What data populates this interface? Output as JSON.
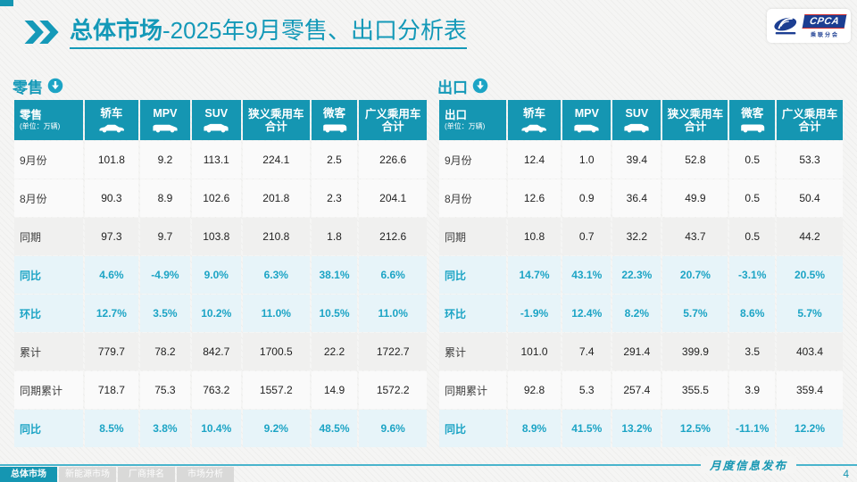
{
  "page": {
    "title_bold": "总体市场",
    "title_rest": "-2025年9月零售、出口分析表",
    "footer_note": "月度信息发布",
    "page_number": "4"
  },
  "logo": {
    "cpca": "CPCA",
    "subtext": "乘联分会"
  },
  "colors": {
    "accent": "#1596B2",
    "percent_text": "#1CA4C5",
    "percent_row_bg": "#E7F4F9"
  },
  "tabs": [
    {
      "label": "总体市场",
      "active": true
    },
    {
      "label": "新能源市场",
      "active": false
    },
    {
      "label": "厂商排名",
      "active": false
    },
    {
      "label": "市场分析",
      "active": false
    }
  ],
  "columns": [
    {
      "label": "轿车",
      "icon": "sedan-icon"
    },
    {
      "label": "MPV",
      "icon": "mpv-icon"
    },
    {
      "label": "SUV",
      "icon": "suv-icon"
    },
    {
      "label": "狭义乘用车合计",
      "icon": null
    },
    {
      "label": "微客",
      "icon": "microvan-icon"
    },
    {
      "label": "广义乘用车合计",
      "icon": null
    }
  ],
  "tables": [
    {
      "name": "零售",
      "unit": "(单位：万辆)",
      "section_icon": "circle-down-arrow-icon",
      "rows": [
        {
          "label": "9月份",
          "kind": "value",
          "values": [
            "101.8",
            "9.2",
            "113.1",
            "224.1",
            "2.5",
            "226.6"
          ]
        },
        {
          "label": "8月份",
          "kind": "value",
          "values": [
            "90.3",
            "8.9",
            "102.6",
            "201.8",
            "2.3",
            "204.1"
          ]
        },
        {
          "label": "同期",
          "kind": "value",
          "values": [
            "97.3",
            "9.7",
            "103.8",
            "210.8",
            "1.8",
            "212.6"
          ]
        },
        {
          "label": "同比",
          "kind": "percent",
          "values": [
            "4.6%",
            "-4.9%",
            "9.0%",
            "6.3%",
            "38.1%",
            "6.6%"
          ]
        },
        {
          "label": "环比",
          "kind": "percent",
          "values": [
            "12.7%",
            "3.5%",
            "10.2%",
            "11.0%",
            "10.5%",
            "11.0%"
          ]
        },
        {
          "label": "累计",
          "kind": "value",
          "values": [
            "779.7",
            "78.2",
            "842.7",
            "1700.5",
            "22.2",
            "1722.7"
          ]
        },
        {
          "label": "同期累计",
          "kind": "value",
          "values": [
            "718.7",
            "75.3",
            "763.2",
            "1557.2",
            "14.9",
            "1572.2"
          ]
        },
        {
          "label": "同比",
          "kind": "percent",
          "values": [
            "8.5%",
            "3.8%",
            "10.4%",
            "9.2%",
            "48.5%",
            "9.6%"
          ]
        }
      ]
    },
    {
      "name": "出口",
      "unit": "(单位：万辆)",
      "section_icon": "circle-down-arrow-icon",
      "rows": [
        {
          "label": "9月份",
          "kind": "value",
          "values": [
            "12.4",
            "1.0",
            "39.4",
            "52.8",
            "0.5",
            "53.3"
          ]
        },
        {
          "label": "8月份",
          "kind": "value",
          "values": [
            "12.6",
            "0.9",
            "36.4",
            "49.9",
            "0.5",
            "50.4"
          ]
        },
        {
          "label": "同期",
          "kind": "value",
          "values": [
            "10.8",
            "0.7",
            "32.2",
            "43.7",
            "0.5",
            "44.2"
          ]
        },
        {
          "label": "同比",
          "kind": "percent",
          "values": [
            "14.7%",
            "43.1%",
            "22.3%",
            "20.7%",
            "-3.1%",
            "20.5%"
          ]
        },
        {
          "label": "环比",
          "kind": "percent",
          "values": [
            "-1.9%",
            "12.4%",
            "8.2%",
            "5.7%",
            "8.6%",
            "5.7%"
          ]
        },
        {
          "label": "累计",
          "kind": "value",
          "values": [
            "101.0",
            "7.4",
            "291.4",
            "399.9",
            "3.5",
            "403.4"
          ]
        },
        {
          "label": "同期累计",
          "kind": "value",
          "values": [
            "92.8",
            "5.3",
            "257.4",
            "355.5",
            "3.9",
            "359.4"
          ]
        },
        {
          "label": "同比",
          "kind": "percent",
          "values": [
            "8.9%",
            "41.5%",
            "13.2%",
            "12.5%",
            "-11.1%",
            "12.2%"
          ]
        }
      ]
    }
  ]
}
